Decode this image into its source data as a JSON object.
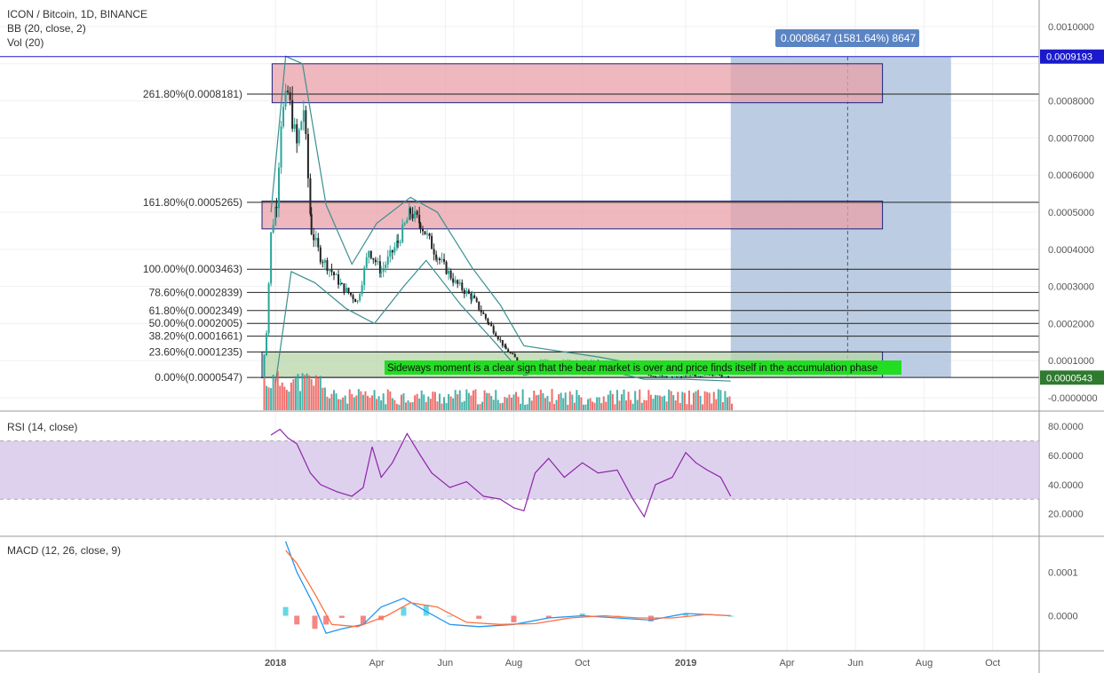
{
  "header": {
    "symbol": "ICON / Bitcoin, 1D, BINANCE",
    "bb": "BB (20, close, 2)",
    "vol": "Vol (20)"
  },
  "price_axis": {
    "ticks": [
      "0.0010000",
      "0.0008000",
      "0.0007000",
      "0.0006000",
      "0.0005000",
      "0.0004000",
      "0.0003000",
      "0.0002000",
      "0.0001000",
      "-0.0000000"
    ],
    "marker_high": "0.0009193",
    "marker_last": "0.0000543",
    "marker_high_color": "#1a1acc",
    "marker_last_color": "#2f7a2f"
  },
  "projection_label": "0.0008647 (1581.64%) 8647",
  "annotation": "Sideways moment is a clear sign that the bear market is over and price finds itself in the accumulation phase",
  "fib_levels": [
    {
      "label": "261.80%(0.0008181)",
      "value": 0.0008181
    },
    {
      "label": "161.80%(0.0005265)",
      "value": 0.0005265
    },
    {
      "label": "100.00%(0.0003463)",
      "value": 0.0003463
    },
    {
      "label": "78.60%(0.0002839)",
      "value": 0.0002839
    },
    {
      "label": "61.80%(0.0002349)",
      "value": 0.0002349
    },
    {
      "label": "50.00%(0.0002005)",
      "value": 0.0002005
    },
    {
      "label": "38.20%(0.0001661)",
      "value": 0.0001661
    },
    {
      "label": "23.60%(0.0001235)",
      "value": 0.0001235
    },
    {
      "label": "0.00%(0.0000547)",
      "value": 5.47e-05
    }
  ],
  "rsi": {
    "title": "RSI (14, close)",
    "ticks": [
      "80.0000",
      "60.0000",
      "40.0000",
      "20.0000"
    ]
  },
  "macd": {
    "title": "MACD (12, 26, close, 9)",
    "ticks": [
      "0.0001",
      "0.0000"
    ]
  },
  "time_axis": [
    "2018",
    "Apr",
    "Jun",
    "Aug",
    "Oct",
    "2019",
    "Apr",
    "Jun",
    "Aug",
    "Oct"
  ],
  "colors": {
    "up": "#26a69a",
    "down": "#ef5350",
    "fib_zone": "#e8a0a8",
    "projection": "#b0c4de",
    "rsi_line": "#8e24aa",
    "rsi_band": "#d6c6e8",
    "macd_line": "#2196f3",
    "signal_line": "#ff7043",
    "annotation_bg": "#22dd22"
  },
  "chart_data": {
    "type": "candlestick",
    "title": "ICON / Bitcoin, 1D, BINANCE",
    "x_range": [
      "2017-12-20",
      "2019-02-20"
    ],
    "price_ylim": [
      -1e-05,
      0.001
    ],
    "price_path": [
      [
        "2017-12-20",
        5.5e-05
      ],
      [
        "2017-12-24",
        0.00018
      ],
      [
        "2017-12-28",
        0.00044
      ],
      [
        "2018-01-02",
        0.00053
      ],
      [
        "2018-01-06",
        0.00075
      ],
      [
        "2018-01-12",
        0.00082
      ],
      [
        "2018-01-20",
        0.00068
      ],
      [
        "2018-01-26",
        0.00078
      ],
      [
        "2018-02-02",
        0.00045
      ],
      [
        "2018-02-10",
        0.00038
      ],
      [
        "2018-02-20",
        0.00034
      ],
      [
        "2018-03-01",
        0.0003
      ],
      [
        "2018-03-15",
        0.00026
      ],
      [
        "2018-03-25",
        0.0004
      ],
      [
        "2018-04-05",
        0.00034
      ],
      [
        "2018-04-20",
        0.00042
      ],
      [
        "2018-05-01",
        0.0005
      ],
      [
        "2018-05-10",
        0.00047
      ],
      [
        "2018-05-25",
        0.00038
      ],
      [
        "2018-06-10",
        0.00031
      ],
      [
        "2018-06-25",
        0.00027
      ],
      [
        "2018-07-10",
        0.0002
      ],
      [
        "2018-07-25",
        0.00013
      ],
      [
        "2018-08-10",
        8.5e-05
      ],
      [
        "2018-08-25",
        0.0001
      ],
      [
        "2018-09-10",
        9.5e-05
      ],
      [
        "2018-10-01",
        0.0001
      ],
      [
        "2018-10-25",
        9.2e-05
      ],
      [
        "2018-11-15",
        8e-05
      ],
      [
        "2018-12-01",
        6e-05
      ],
      [
        "2018-12-20",
        5.5e-05
      ],
      [
        "2019-01-10",
        6e-05
      ],
      [
        "2019-01-25",
        6.3e-05
      ],
      [
        "2019-02-10",
        5.4e-05
      ]
    ],
    "bb_upper": [
      [
        "2017-12-28",
        0.0005
      ],
      [
        "2018-01-10",
        0.00092
      ],
      [
        "2018-01-25",
        0.0009
      ],
      [
        "2018-02-15",
        0.00052
      ],
      [
        "2018-03-10",
        0.00036
      ],
      [
        "2018-04-01",
        0.00047
      ],
      [
        "2018-05-01",
        0.00054
      ],
      [
        "2018-05-25",
        0.0005
      ],
      [
        "2018-06-25",
        0.00035
      ],
      [
        "2018-07-20",
        0.00025
      ],
      [
        "2018-08-10",
        0.00014
      ],
      [
        "2018-09-01",
        0.00013
      ],
      [
        "2018-10-15",
        0.00011
      ],
      [
        "2018-11-20",
        9e-05
      ],
      [
        "2019-01-01",
        7e-05
      ],
      [
        "2019-02-10",
        6.5e-05
      ]
    ],
    "bb_lower": [
      [
        "2018-01-01",
        4e-05
      ],
      [
        "2018-01-15",
        0.00034
      ],
      [
        "2018-02-05",
        0.00031
      ],
      [
        "2018-03-05",
        0.00024
      ],
      [
        "2018-03-30",
        0.0002
      ],
      [
        "2018-04-25",
        0.0003
      ],
      [
        "2018-05-15",
        0.00037
      ],
      [
        "2018-06-15",
        0.00025
      ],
      [
        "2018-07-15",
        0.00015
      ],
      [
        "2018-08-10",
        6e-05
      ],
      [
        "2018-09-10",
        8e-05
      ],
      [
        "2018-10-20",
        7.5e-05
      ],
      [
        "2018-11-25",
        5e-05
      ],
      [
        "2019-01-01",
        5e-05
      ],
      [
        "2019-02-10",
        4.5e-05
      ]
    ],
    "fib_zones": [
      {
        "start": "2017-12-29",
        "end": "2019-06-25",
        "low": 0.000795,
        "high": 0.0009
      },
      {
        "start": "2017-12-20",
        "end": "2019-06-25",
        "low": 0.000455,
        "high": 0.00053
      },
      {
        "start": "2017-12-20",
        "end": "2019-06-25",
        "low": 5.47e-05,
        "high": 0.0001235
      }
    ],
    "projection": {
      "start": "2019-02-10",
      "end": "2019-08-25",
      "low": 5.47e-05,
      "high": 0.0009193
    },
    "rsi_ylim": [
      10,
      85
    ],
    "rsi_band": [
      30,
      70
    ],
    "rsi": [
      [
        "2017-12-28",
        74
      ],
      [
        "2018-01-05",
        78
      ],
      [
        "2018-01-12",
        72
      ],
      [
        "2018-01-20",
        68
      ],
      [
        "2018-02-01",
        48
      ],
      [
        "2018-02-10",
        40
      ],
      [
        "2018-02-25",
        35
      ],
      [
        "2018-03-10",
        32
      ],
      [
        "2018-03-20",
        38
      ],
      [
        "2018-03-28",
        66
      ],
      [
        "2018-04-05",
        45
      ],
      [
        "2018-04-15",
        55
      ],
      [
        "2018-04-28",
        75
      ],
      [
        "2018-05-10",
        60
      ],
      [
        "2018-05-20",
        48
      ],
      [
        "2018-06-05",
        38
      ],
      [
        "2018-06-20",
        42
      ],
      [
        "2018-07-05",
        32
      ],
      [
        "2018-07-20",
        30
      ],
      [
        "2018-08-01",
        24
      ],
      [
        "2018-08-10",
        22
      ],
      [
        "2018-08-20",
        48
      ],
      [
        "2018-09-01",
        58
      ],
      [
        "2018-09-15",
        45
      ],
      [
        "2018-10-01",
        55
      ],
      [
        "2018-10-15",
        48
      ],
      [
        "2018-11-01",
        50
      ],
      [
        "2018-11-15",
        30
      ],
      [
        "2018-11-25",
        18
      ],
      [
        "2018-12-05",
        40
      ],
      [
        "2018-12-20",
        45
      ],
      [
        "2019-01-01",
        62
      ],
      [
        "2019-01-10",
        55
      ],
      [
        "2019-01-20",
        50
      ],
      [
        "2019-02-01",
        45
      ],
      [
        "2019-02-10",
        32
      ]
    ],
    "macd_ylim": [
      -6e-05,
      0.00018
    ],
    "macd": [
      [
        "2018-01-10",
        0.00017
      ],
      [
        "2018-01-20",
        0.0001
      ],
      [
        "2018-02-05",
        2e-05
      ],
      [
        "2018-02-15",
        -4e-05
      ],
      [
        "2018-03-01",
        -3e-05
      ],
      [
        "2018-03-20",
        -2e-05
      ],
      [
        "2018-04-05",
        2e-05
      ],
      [
        "2018-04-25",
        4e-05
      ],
      [
        "2018-05-15",
        1e-05
      ],
      [
        "2018-06-05",
        -2e-05
      ],
      [
        "2018-07-01",
        -2.5e-05
      ],
      [
        "2018-08-01",
        -2e-05
      ],
      [
        "2018-09-01",
        -5e-06
      ],
      [
        "2018-10-01",
        0.0
      ],
      [
        "2018-11-01",
        -5e-06
      ],
      [
        "2018-12-01",
        -1e-05
      ],
      [
        "2019-01-01",
        5e-06
      ],
      [
        "2019-02-10",
        0.0
      ]
    ],
    "signal": [
      [
        "2018-01-10",
        0.00015
      ],
      [
        "2018-01-20",
        0.00012
      ],
      [
        "2018-02-05",
        5e-05
      ],
      [
        "2018-02-20",
        -2e-05
      ],
      [
        "2018-03-15",
        -2.5e-05
      ],
      [
        "2018-04-10",
        0.0
      ],
      [
        "2018-05-01",
        3e-05
      ],
      [
        "2018-05-25",
        2e-05
      ],
      [
        "2018-06-20",
        -1.5e-05
      ],
      [
        "2018-07-20",
        -2e-05
      ],
      [
        "2018-08-20",
        -1.8e-05
      ],
      [
        "2018-09-20",
        -5e-06
      ],
      [
        "2018-10-20",
        0.0
      ],
      [
        "2018-11-20",
        -5e-06
      ],
      [
        "2018-12-20",
        -5e-06
      ],
      [
        "2019-01-20",
        3e-06
      ],
      [
        "2019-02-10",
        0.0
      ]
    ]
  }
}
